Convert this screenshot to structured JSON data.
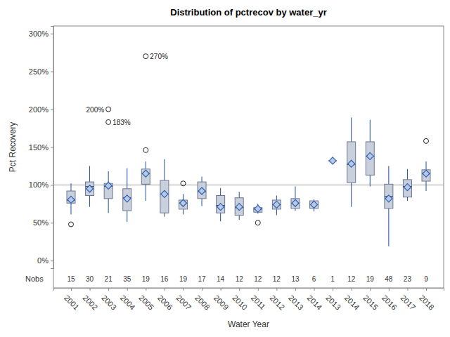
{
  "chart_data": {
    "type": "box",
    "title": "Distribution of pctrecov by water_yr",
    "x_label": "Water Year",
    "y_label": "Pct Recovery",
    "categories": [
      "2001",
      "2002",
      "2003",
      "2004",
      "2005",
      "2006",
      "2007",
      "2008",
      "2009",
      "2010",
      "2011",
      "2012",
      "2013",
      "2014",
      "2013",
      "2014",
      "2015",
      "2016",
      "2017",
      "2018"
    ],
    "min": [
      61,
      71,
      63,
      51,
      79,
      58,
      61,
      72,
      52,
      54,
      62,
      60,
      66,
      65,
      132,
      71,
      98,
      19,
      79,
      92
    ],
    "q1": [
      76,
      86,
      82,
      66,
      101,
      63,
      68,
      82,
      63,
      60,
      64,
      68,
      69,
      69,
      132,
      103,
      113,
      69,
      84,
      105
    ],
    "median": [
      80,
      98,
      98,
      83,
      115,
      88,
      76,
      91,
      73,
      70,
      68,
      74,
      75,
      74,
      132,
      127,
      138,
      85,
      98,
      115
    ],
    "q3": [
      92,
      104,
      102,
      95,
      121,
      106,
      80,
      104,
      86,
      83,
      70,
      80,
      82,
      79,
      132,
      157,
      157,
      101,
      107,
      120
    ],
    "max": [
      102,
      125,
      118,
      122,
      131,
      134,
      88,
      111,
      96,
      91,
      75,
      86,
      98,
      81,
      132,
      189,
      186,
      125,
      121,
      131
    ],
    "mean": [
      80.5,
      95,
      99,
      82,
      115,
      88,
      76,
      92,
      71,
      71,
      68.5,
      74,
      76,
      74,
      132,
      128,
      138,
      82,
      97,
      115
    ],
    "outliers": [
      [
        48
      ],
      [],
      [
        200,
        183
      ],
      [],
      [
        270,
        146
      ],
      [],
      [
        102
      ],
      [],
      [],
      [],
      [
        50
      ],
      [],
      [],
      [],
      [],
      [],
      [],
      [],
      [],
      [
        158
      ]
    ],
    "outlier_labels": [
      [
        null
      ],
      [],
      [
        "200%",
        "183%"
      ],
      [],
      [
        "270%",
        null
      ],
      [],
      [
        null
      ],
      [],
      [],
      [],
      [
        null
      ],
      [],
      [],
      [],
      [],
      [],
      [],
      [],
      [],
      [
        null
      ]
    ],
    "nobs_label": "Nobs",
    "nobs": [
      15,
      30,
      21,
      35,
      19,
      16,
      19,
      17,
      14,
      12,
      12,
      12,
      13,
      6,
      1,
      12,
      19,
      48,
      23,
      9
    ],
    "reference_line": 100,
    "color": "#c9cfdb",
    "ylim": [
      -10,
      310
    ],
    "yticks": [
      {
        "value": 0,
        "label": "0%"
      },
      {
        "value": 50,
        "label": "50%"
      },
      {
        "value": 100,
        "label": "100%"
      },
      {
        "value": 150,
        "label": "150%"
      },
      {
        "value": 200,
        "label": "200%"
      },
      {
        "value": 250,
        "label": "250%"
      },
      {
        "value": 300,
        "label": "300%"
      }
    ],
    "grid": false
  }
}
